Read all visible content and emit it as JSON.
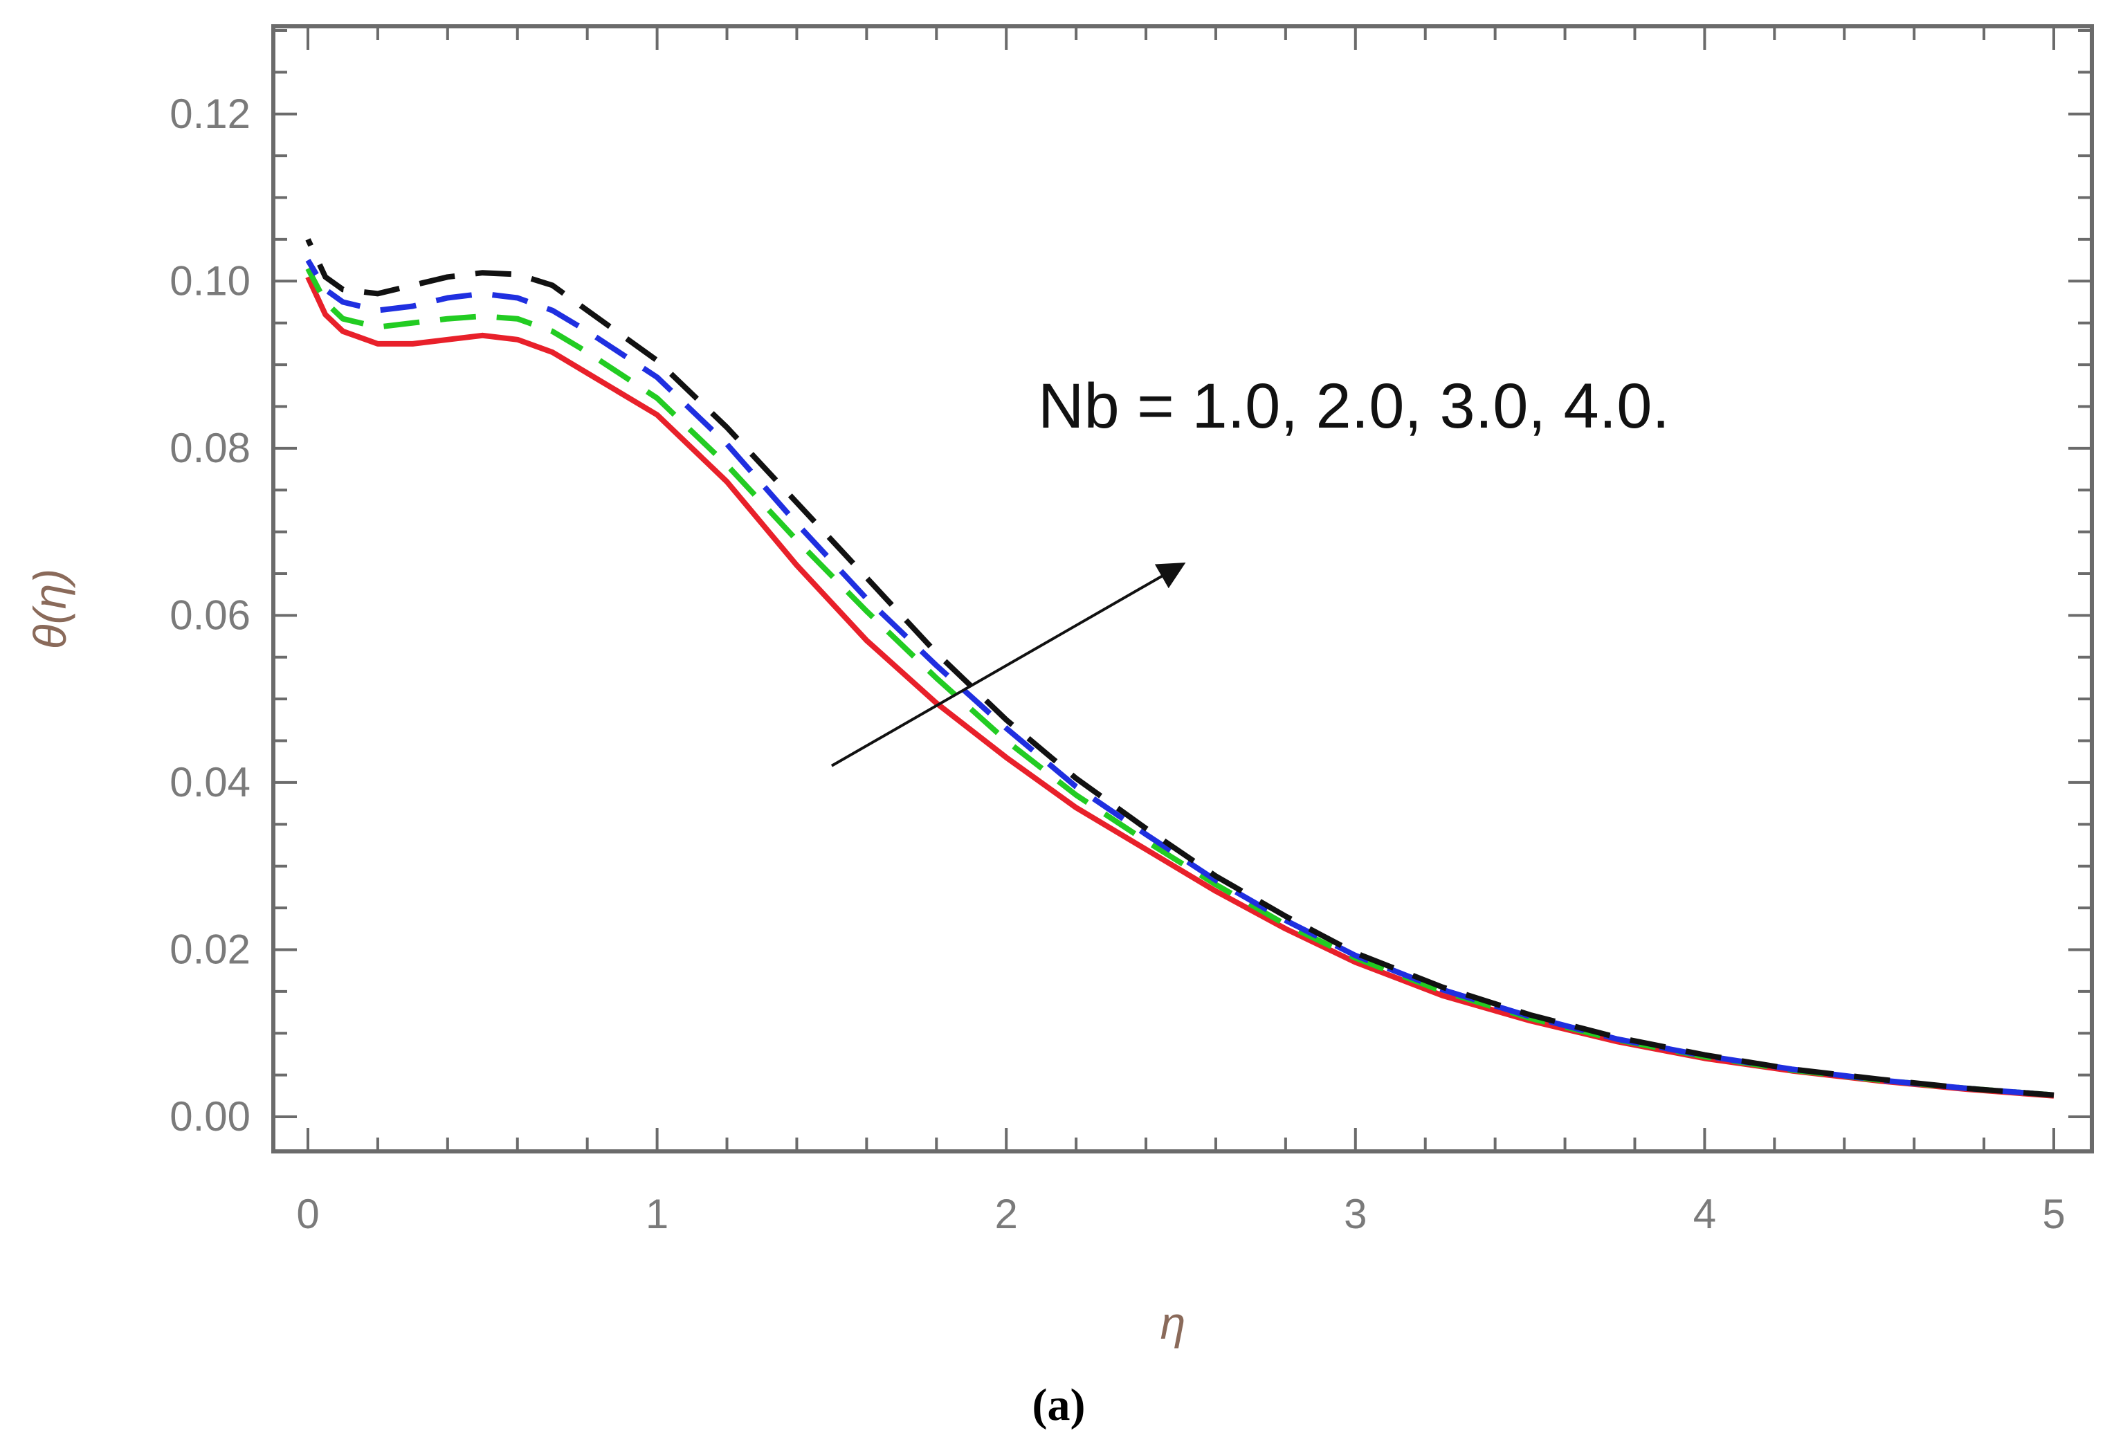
{
  "chart_data": {
    "type": "line",
    "title": "",
    "xlabel": "η",
    "ylabel": "θ(η)",
    "xlim": [
      0,
      5
    ],
    "ylim": [
      0,
      0.13
    ],
    "xticks": [
      0,
      1,
      2,
      3,
      4,
      5
    ],
    "xtick_labels": [
      "0",
      "1",
      "2",
      "3",
      "4",
      "5"
    ],
    "yticks": [
      0.0,
      0.02,
      0.04,
      0.06,
      0.08,
      0.1,
      0.12
    ],
    "ytick_labels": [
      "0.00",
      "0.02",
      "0.04",
      "0.06",
      "0.08",
      "0.10",
      "0.12"
    ],
    "grid": false,
    "legend": null,
    "annotation": "Nb = 1.0, 2.0, 3.0, 4.0.",
    "arrow": {
      "from": [
        1.5,
        0.042
      ],
      "to": [
        2.5,
        0.066
      ]
    },
    "caption": "(a)",
    "x": [
      0,
      0.05,
      0.1,
      0.2,
      0.3,
      0.4,
      0.5,
      0.6,
      0.7,
      0.8,
      1.0,
      1.2,
      1.4,
      1.6,
      1.8,
      2.0,
      2.2,
      2.4,
      2.6,
      2.8,
      3.0,
      3.25,
      3.5,
      3.75,
      4.0,
      4.25,
      4.5,
      4.75,
      5.0
    ],
    "series": [
      {
        "name": "Nb = 1.0",
        "color": "#e8202a",
        "dash": "solid",
        "values": [
          0.1005,
          0.096,
          0.094,
          0.0925,
          0.0925,
          0.093,
          0.0935,
          0.093,
          0.0915,
          0.089,
          0.084,
          0.076,
          0.066,
          0.057,
          0.0495,
          0.043,
          0.037,
          0.032,
          0.027,
          0.0225,
          0.0185,
          0.0145,
          0.0115,
          0.009,
          0.007,
          0.0055,
          0.0043,
          0.0033,
          0.0025
        ]
      },
      {
        "name": "Nb = 2.0",
        "color": "#22cc22",
        "dash": "dashed",
        "values": [
          0.1015,
          0.0975,
          0.0955,
          0.0945,
          0.095,
          0.0955,
          0.0958,
          0.0955,
          0.094,
          0.0915,
          0.086,
          0.078,
          0.069,
          0.0605,
          0.0525,
          0.045,
          0.0385,
          0.033,
          0.0278,
          0.023,
          0.019,
          0.015,
          0.0118,
          0.0092,
          0.0072,
          0.0056,
          0.0044,
          0.0034,
          0.0026
        ]
      },
      {
        "name": "Nb = 3.0",
        "color": "#1f2fe0",
        "dash": "dashed",
        "values": [
          0.1025,
          0.099,
          0.0975,
          0.0965,
          0.097,
          0.098,
          0.0985,
          0.098,
          0.0965,
          0.094,
          0.0885,
          0.0805,
          0.071,
          0.062,
          0.054,
          0.0465,
          0.0395,
          0.0338,
          0.0283,
          0.0235,
          0.0193,
          0.0152,
          0.012,
          0.0093,
          0.0073,
          0.0057,
          0.0044,
          0.0034,
          0.0026
        ]
      },
      {
        "name": "Nb = 4.0",
        "color": "#111111",
        "dash": "dashed",
        "values": [
          0.105,
          0.1005,
          0.099,
          0.0985,
          0.0995,
          0.1005,
          0.101,
          0.1008,
          0.0995,
          0.0965,
          0.0905,
          0.0825,
          0.0735,
          0.0645,
          0.0555,
          0.0475,
          0.0405,
          0.0345,
          0.0288,
          0.024,
          0.0196,
          0.0155,
          0.0122,
          0.0095,
          0.0074,
          0.0057,
          0.0045,
          0.0034,
          0.0026
        ]
      }
    ]
  }
}
